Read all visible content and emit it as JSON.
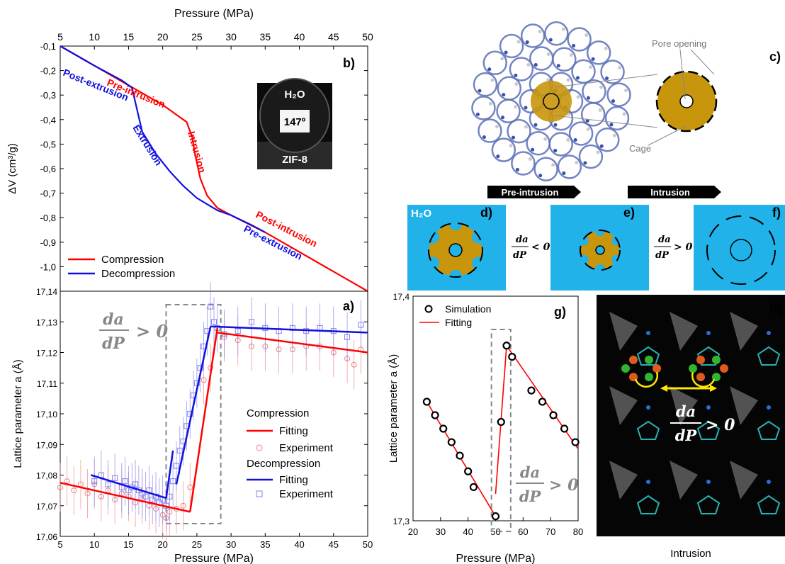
{
  "chart_data": [
    {
      "panel": "b)",
      "type": "line",
      "title": "",
      "xlabel": "Pressure (MPa)",
      "ylabel": "ΔV (cm³/g)",
      "xlim": [
        5,
        50
      ],
      "ylim": [
        -1.1,
        -0.1
      ],
      "xticks": [
        "5",
        "10",
        "15",
        "20",
        "25",
        "30",
        "35",
        "40",
        "45",
        "50"
      ],
      "yticks": [
        "-0,1",
        "-0,2",
        "-0,3",
        "-0,4",
        "-0,5",
        "-0,6",
        "-0,7",
        "-0,8",
        "-0,9",
        "-1,0"
      ],
      "legend": [
        {
          "label": "Compression",
          "color": "#ff0000"
        },
        {
          "label": "Decompression",
          "color": "#1010e0"
        }
      ],
      "series": [
        {
          "name": "Compression",
          "color": "#ff0000",
          "x": [
            5,
            10,
            15,
            20,
            22,
            23.5,
            24.3,
            24.8,
            25.5,
            26.5,
            28,
            30,
            35,
            40,
            45,
            50
          ],
          "y": [
            -0.1,
            -0.18,
            -0.26,
            -0.34,
            -0.38,
            -0.41,
            -0.47,
            -0.55,
            -0.64,
            -0.71,
            -0.76,
            -0.79,
            -0.86,
            -0.94,
            -1.02,
            -1.1
          ]
        },
        {
          "name": "Decompression",
          "color": "#1010e0",
          "x": [
            5,
            10,
            14,
            15.5,
            16,
            17,
            19,
            21,
            23,
            25,
            28,
            30,
            33,
            35
          ],
          "y": [
            -0.1,
            -0.18,
            -0.24,
            -0.27,
            -0.33,
            -0.45,
            -0.54,
            -0.61,
            -0.67,
            -0.72,
            -0.77,
            -0.79,
            -0.83,
            -0.86
          ]
        }
      ],
      "annotations": [
        "Pre-intrusion",
        "Post-extrusion",
        "Intrusion",
        "Extrusion",
        "Post-intrusion",
        "Pre-extrusion"
      ],
      "inset": {
        "liquid": "H₂O",
        "angle": "147º",
        "solid": "ZIF-8"
      }
    },
    {
      "panel": "a)",
      "type": "scatter",
      "title": "",
      "xlabel": "Pressure (MPa)",
      "ylabel": "Lattice parameter a (Å)",
      "xlim": [
        5,
        50
      ],
      "ylim": [
        17.06,
        17.14
      ],
      "xticks": [
        "5",
        "10",
        "15",
        "20",
        "25",
        "30",
        "35",
        "40",
        "45",
        "50"
      ],
      "yticks": [
        "17,06",
        "17,07",
        "17,08",
        "17,09",
        "17,10",
        "17,11",
        "17,12",
        "17,13",
        "17,14"
      ],
      "legend": [
        {
          "label": "Compression",
          "role": "header"
        },
        {
          "label": "Fitting",
          "color": "#ff0000",
          "kind": "line"
        },
        {
          "label": "Experiment",
          "color": "#f08080",
          "kind": "circle"
        },
        {
          "label": "Decompression",
          "role": "header"
        },
        {
          "label": "Fitting",
          "color": "#1010e0",
          "kind": "line"
        },
        {
          "label": "Experiment",
          "color": "#8080ee",
          "kind": "square"
        }
      ],
      "series": [
        {
          "name": "Compression",
          "color": "#f08080",
          "marker": "circle",
          "x": [
            5,
            6,
            7,
            8,
            9,
            10,
            11,
            12,
            13,
            14,
            15,
            16,
            17,
            18,
            19,
            20,
            20.5,
            21,
            22,
            23,
            24,
            26,
            27,
            29,
            31,
            33,
            35,
            37,
            39,
            41,
            43,
            45,
            47,
            48,
            49
          ],
          "y": [
            17.076,
            17.078,
            17.075,
            17.077,
            17.074,
            17.077,
            17.073,
            17.075,
            17.072,
            17.074,
            17.073,
            17.071,
            17.072,
            17.07,
            17.069,
            17.067,
            17.066,
            17.068,
            17.069,
            17.07,
            17.076,
            17.111,
            17.115,
            17.125,
            17.124,
            17.122,
            17.122,
            17.121,
            17.121,
            17.122,
            17.122,
            17.12,
            17.118,
            17.116,
            17.121
          ],
          "error": 0.008
        },
        {
          "name": "Decompression",
          "color": "#8080ee",
          "marker": "square",
          "x": [
            10,
            11,
            12,
            13,
            14,
            14.5,
            15,
            15.5,
            16,
            16.5,
            17,
            17.5,
            18,
            18.5,
            19,
            19.5,
            20,
            20.5,
            21,
            21.5,
            22,
            22.5,
            23,
            23.5,
            24,
            24.5,
            25,
            25.5,
            26,
            26.5,
            27,
            27.5,
            28,
            29,
            31,
            33,
            35,
            37,
            39,
            41,
            43,
            45,
            47,
            49
          ],
          "y": [
            17.078,
            17.08,
            17.077,
            17.079,
            17.076,
            17.078,
            17.075,
            17.076,
            17.077,
            17.075,
            17.074,
            17.073,
            17.075,
            17.072,
            17.073,
            17.071,
            17.072,
            17.07,
            17.073,
            17.078,
            17.083,
            17.088,
            17.091,
            17.096,
            17.1,
            17.106,
            17.11,
            17.115,
            17.122,
            17.127,
            17.135,
            17.13,
            17.128,
            17.126,
            17.127,
            17.13,
            17.128,
            17.127,
            17.128,
            17.127,
            17.128,
            17.127,
            17.125,
            17.129
          ],
          "error": 0.008
        }
      ],
      "fits": [
        {
          "name": "Compression fit",
          "color": "#ff0000",
          "segments": [
            [
              [
                5,
                17.0775
              ],
              [
                24,
                17.068
              ]
            ],
            [
              [
                24,
                17.068
              ],
              [
                28,
                17.128
              ]
            ],
            [
              [
                28,
                17.1265
              ],
              [
                50,
                17.12
              ]
            ]
          ]
        },
        {
          "name": "Decompression fit",
          "color": "#1010e0",
          "segments": [
            [
              [
                9.5,
                17.08
              ],
              [
                20.5,
                17.0725
              ]
            ],
            [
              [
                20.5,
                17.0725
              ],
              [
                21.5,
                17.088
              ]
            ],
            [
              [
                22,
                17.077
              ],
              [
                27,
                17.1285
              ]
            ],
            [
              [
                27,
                17.1285
              ],
              [
                50,
                17.1265
              ]
            ]
          ]
        }
      ],
      "annotation": "da/dP > 0",
      "highlight_box_x": [
        20.5,
        28.5
      ]
    },
    {
      "panel": "g)",
      "type": "scatter",
      "title": "",
      "xlabel": "Pressure (MPa)",
      "ylabel": "Lattice parameter a (Å)",
      "xlim": [
        20,
        80
      ],
      "ylim": [
        17.3,
        17.4
      ],
      "xticks": [
        "20",
        "30",
        "40",
        "50",
        "60",
        "70",
        "80"
      ],
      "yticks": [
        "17,3",
        "17,4"
      ],
      "legend": [
        {
          "label": "Simulation",
          "kind": "circle",
          "color": "#000000"
        },
        {
          "label": "Fitting",
          "kind": "line",
          "color": "#ff0000"
        }
      ],
      "series": [
        {
          "name": "Simulation",
          "color": "#000000",
          "x": [
            25,
            28,
            31,
            34,
            37,
            40,
            42,
            50,
            52,
            54,
            56,
            63,
            67,
            71,
            75,
            79
          ],
          "y": [
            17.353,
            17.347,
            17.341,
            17.335,
            17.329,
            17.322,
            17.315,
            17.302,
            17.344,
            17.378,
            17.373,
            17.358,
            17.353,
            17.347,
            17.341,
            17.335
          ]
        }
      ],
      "fits": [
        {
          "name": "Fitting",
          "color": "#ff0000",
          "segments": [
            [
              [
                25,
                17.353
              ],
              [
                50,
                17.302
              ]
            ],
            [
              [
                50,
                17.312
              ],
              [
                54,
                17.378
              ]
            ],
            [
              [
                54,
                17.378
              ],
              [
                80,
                17.332
              ]
            ]
          ]
        }
      ],
      "annotation": "da/dP > 0",
      "highlight_box_x": [
        48.5,
        55.5
      ]
    }
  ],
  "panels": {
    "c": {
      "label": "c)",
      "pore_label": "Pore opening",
      "cage_label": "Cage"
    },
    "arrows": {
      "pre_intrusion": "Pre-intrusion",
      "intrusion": "Intrusion"
    },
    "d": {
      "label": "d)",
      "water": "H₂O"
    },
    "e": {
      "label": "e)"
    },
    "f": {
      "label": "f)"
    },
    "de_rel": "da/dP < 0",
    "ef_rel": "da/dP > 0",
    "h": {
      "label": "h)",
      "rel": "da/dP > 0",
      "caption": "Intrusion"
    }
  },
  "colors": {
    "compression": "#ff0000",
    "decompression": "#1010e0",
    "cage": "#c8960c",
    "water": "#20b2e8"
  }
}
